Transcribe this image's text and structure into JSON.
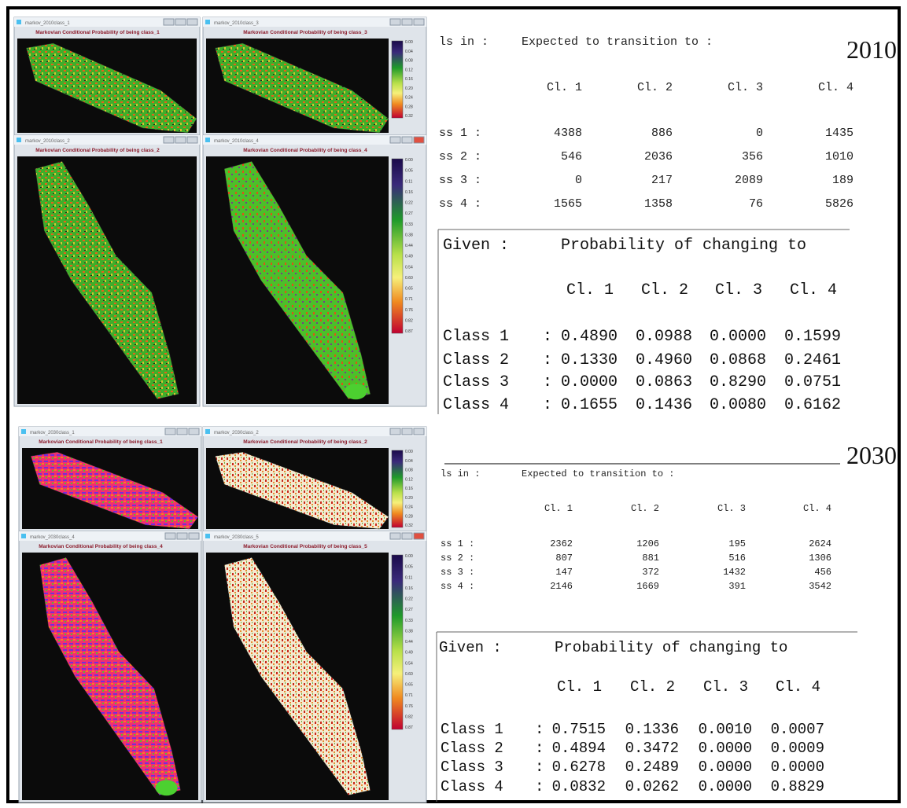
{
  "windows": [
    {
      "title": "markov_2010class_1",
      "heading": "Markovian Conditional Probability of being class_1"
    },
    {
      "title": "markov_2010class_3",
      "heading": "Markovian Conditional Probability of being class_3"
    },
    {
      "title": "markov_2010class_2",
      "heading": "Markovian Conditional Probability of being class_2"
    },
    {
      "title": "markov_2010class_4",
      "heading": "Markovian Conditional Probability of being class_4"
    },
    {
      "title": "markov_2030class_1",
      "heading": "Markovian Conditional Probability of being class_1"
    },
    {
      "title": "markov_2030class_2",
      "heading": "Markovian Conditional Probability of being class_2"
    },
    {
      "title": "markov_2030class_4",
      "heading": "Markovian Conditional Probability of being class_4"
    },
    {
      "title": "markov_2030class_5",
      "heading": "Markovian Conditional Probability of being class_5"
    }
  ],
  "legends": {
    "small": [
      "0.00",
      "0.04",
      "0.08",
      "0.12",
      "0.16",
      "0.20",
      "0.24",
      "0.28",
      "0.32"
    ],
    "large": [
      "0.00",
      "0.05",
      "0.11",
      "0.16",
      "0.22",
      "0.27",
      "0.33",
      "0.38",
      "0.44",
      "0.49",
      "0.54",
      "0.60",
      "0.65",
      "0.71",
      "0.76",
      "0.82",
      "0.87"
    ]
  },
  "tables": [
    {
      "year": "2010",
      "expected": {
        "row_header": "ls in :",
        "title": "Expected to transition to :",
        "columns": [
          "Cl. 1",
          "Cl. 2",
          "Cl. 3",
          "Cl. 4"
        ],
        "rows": [
          {
            "label": "ss 1 :",
            "values": [
              4388,
              886,
              0,
              1435
            ]
          },
          {
            "label": "ss 2 :",
            "values": [
              546,
              2036,
              356,
              1010
            ]
          },
          {
            "label": "ss 3 :",
            "values": [
              0,
              217,
              2089,
              189
            ]
          },
          {
            "label": "ss 4 :",
            "values": [
              1565,
              1358,
              76,
              5826
            ]
          }
        ]
      },
      "probability": {
        "row_header": "Given :",
        "title": "Probability of changing to",
        "separator": ":",
        "columns": [
          "Cl. 1",
          "Cl. 2",
          "Cl. 3",
          "Cl. 4"
        ],
        "rows": [
          {
            "label": "Class 1",
            "values": [
              "0.4890",
              "0.0988",
              "0.0000",
              "0.1599"
            ]
          },
          {
            "label": "Class 2",
            "values": [
              "0.1330",
              "0.4960",
              "0.0868",
              "0.2461"
            ]
          },
          {
            "label": "Class 3",
            "values": [
              "0.0000",
              "0.0863",
              "0.8290",
              "0.0751"
            ]
          },
          {
            "label": "Class 4",
            "values": [
              "0.1655",
              "0.1436",
              "0.0080",
              "0.6162"
            ]
          }
        ]
      }
    },
    {
      "year": "2030",
      "expected": {
        "row_header": "ls in :",
        "title": "Expected to transition to :",
        "columns": [
          "Cl. 1",
          "Cl. 2",
          "Cl. 3",
          "Cl. 4"
        ],
        "rows": [
          {
            "label": "ss 1 :",
            "values": [
              2362,
              1206,
              195,
              2624
            ]
          },
          {
            "label": "ss 2 :",
            "values": [
              807,
              881,
              516,
              1306
            ]
          },
          {
            "label": "ss 3 :",
            "values": [
              147,
              372,
              1432,
              456
            ]
          },
          {
            "label": "ss 4 :",
            "values": [
              2146,
              1669,
              391,
              3542
            ]
          }
        ]
      },
      "probability": {
        "row_header": "Given :",
        "title": "Probability of changing to",
        "separator": ":",
        "columns": [
          "Cl. 1",
          "Cl. 2",
          "Cl. 3",
          "Cl. 4"
        ],
        "rows": [
          {
            "label": "Class 1",
            "values": [
              "0.7515",
              "0.1336",
              "0.0010",
              "0.0007"
            ]
          },
          {
            "label": "Class 2",
            "values": [
              "0.4894",
              "0.3472",
              "0.0000",
              "0.0009"
            ]
          },
          {
            "label": "Class 3",
            "values": [
              "0.6278",
              "0.2489",
              "0.0000",
              "0.0000"
            ]
          },
          {
            "label": "Class 4",
            "values": [
              "0.0832",
              "0.0262",
              "0.0000",
              "0.8829"
            ]
          }
        ]
      }
    }
  ]
}
